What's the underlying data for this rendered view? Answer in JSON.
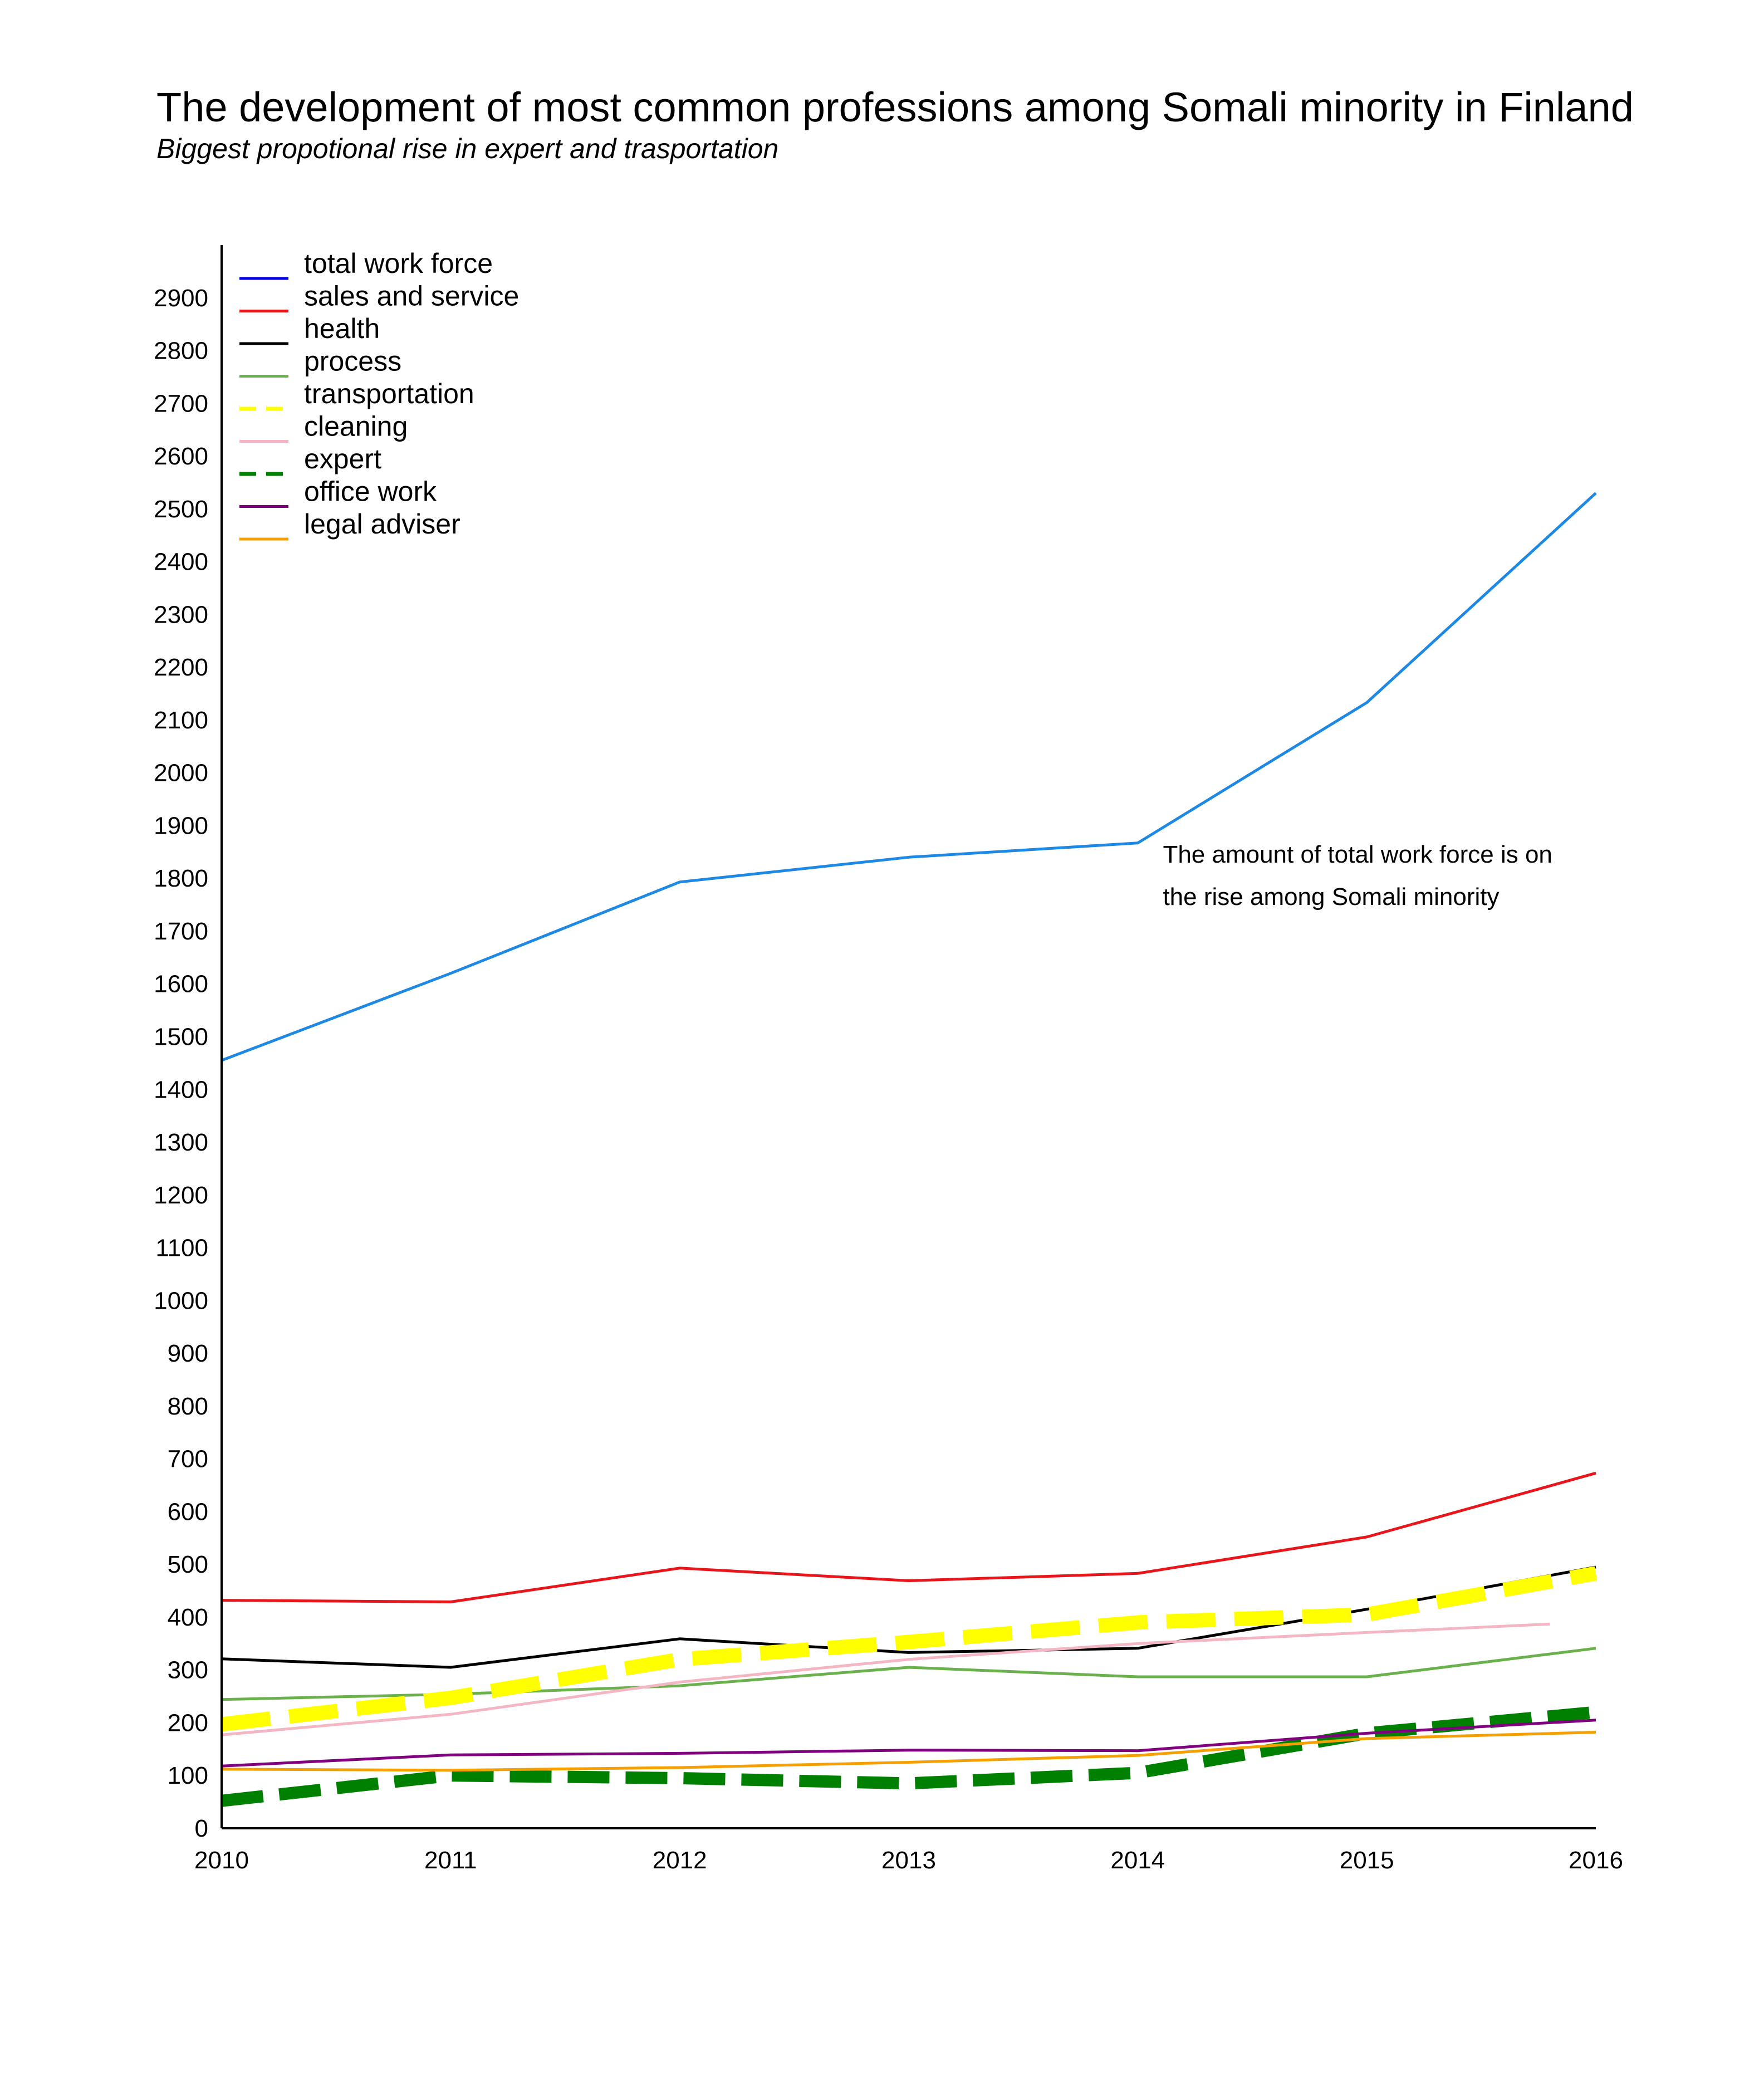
{
  "chart_data": {
    "type": "line",
    "title": "The development of most common professions among Somali minority in Finland",
    "subtitle": "Biggest propotional rise in expert and trasportation",
    "xlabel": "",
    "ylabel": "",
    "x": [
      2010,
      2011,
      2012,
      2013,
      2014,
      2015,
      2016
    ],
    "xlim": [
      2010,
      2016
    ],
    "ylim": [
      0,
      3000
    ],
    "yticks": [
      0,
      100,
      200,
      300,
      400,
      500,
      600,
      700,
      800,
      900,
      1000,
      1100,
      1200,
      1300,
      1400,
      1500,
      1600,
      1700,
      1800,
      1900,
      2000,
      2100,
      2200,
      2300,
      2400,
      2500,
      2600,
      2700,
      2800,
      2900
    ],
    "grid": false,
    "legend_position": "top-left",
    "series": [
      {
        "name": "total work force",
        "legend_color": "#0000ee",
        "color": "#1e88e5",
        "dashed": false,
        "width": 5,
        "x": [
          2010,
          2011,
          2012,
          2013,
          2014,
          2015,
          2016
        ],
        "values": [
          1455,
          1620,
          1793,
          1840,
          1867,
          2133,
          2530
        ]
      },
      {
        "name": "sales and service",
        "color": "#e8161b",
        "dashed": false,
        "width": 5,
        "x": [
          2010,
          2011,
          2012,
          2013,
          2014,
          2015,
          2016
        ],
        "values": [
          432,
          429,
          493,
          469,
          483,
          552,
          673
        ]
      },
      {
        "name": "health",
        "color": "#000000",
        "dashed": false,
        "width": 5,
        "x": [
          2010,
          2011,
          2012,
          2013,
          2014,
          2015,
          2016
        ],
        "values": [
          321,
          305,
          359,
          333,
          341,
          415,
          495
        ]
      },
      {
        "name": "process",
        "color": "#6ab04c",
        "dashed": false,
        "width": 5,
        "x": [
          2010,
          2011,
          2012,
          2013,
          2014,
          2015,
          2016
        ],
        "values": [
          244,
          254,
          270,
          305,
          287,
          287,
          341
        ]
      },
      {
        "name": "transportation",
        "color": "#ffff00",
        "dashed": true,
        "width": 26,
        "x": [
          2010,
          2011,
          2012,
          2013,
          2014,
          2015,
          2016
        ],
        "values": [
          197,
          247,
          320,
          353,
          390,
          405,
          483
        ]
      },
      {
        "name": "cleaning",
        "color": "#f4b6c2",
        "dashed": false,
        "width": 5,
        "x": [
          2010,
          2011,
          2012,
          2013,
          2014,
          2015,
          2015.8
        ],
        "values": [
          177,
          216,
          277,
          320,
          350,
          371,
          387
        ]
      },
      {
        "name": "expert",
        "color": "#008000",
        "dashed": true,
        "width": 22,
        "x": [
          2010,
          2011,
          2012,
          2013,
          2014,
          2015,
          2016
        ],
        "values": [
          52,
          100,
          95,
          85,
          105,
          180,
          220
        ]
      },
      {
        "name": "office work",
        "color": "#800080",
        "dashed": false,
        "width": 5,
        "x": [
          2010,
          2011,
          2012,
          2013,
          2014,
          2015,
          2016
        ],
        "values": [
          118,
          139,
          142,
          148,
          147,
          180,
          205
        ]
      },
      {
        "name": "legal adviser",
        "color": "#f5a000",
        "dashed": false,
        "width": 5,
        "x": [
          2010,
          2011,
          2012,
          2013,
          2014,
          2015,
          2016
        ],
        "values": [
          112,
          110,
          115,
          125,
          138,
          170,
          182
        ]
      }
    ],
    "annotations": [
      {
        "text_lines": [
          "The amount of total work force is on",
          "the rise among Somali minority"
        ],
        "x": 2014.1,
        "y": 1830
      }
    ]
  }
}
